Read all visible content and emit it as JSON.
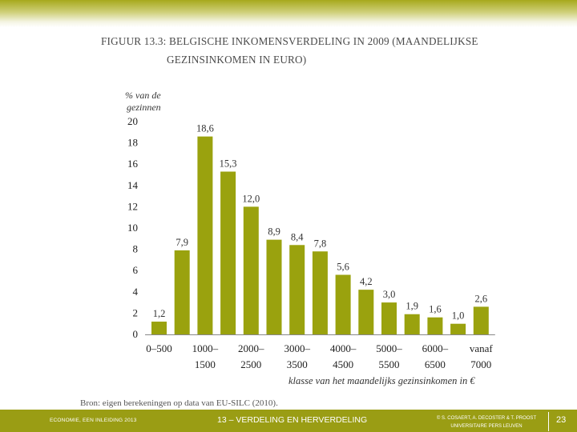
{
  "slide": {
    "title_line1": "FIGUUR 13.3: BELGISCHE INKOMENSVERDELING IN 2009 (MAANDELIJKSE",
    "title_line2": "GEZINSINKOMEN IN EURO)",
    "source": "Bron: eigen berekeningen op data van EU-SILC (2010)."
  },
  "footer": {
    "left": "ECONOMIE, EEN INLEIDING 2013",
    "middle": "13 – VERDELING EN HERVERDELING",
    "right_line1": "© S. COSAERT, A. DECOSTER & T. PROOST",
    "right_line2": "UNIVERSITAIRE PERS LEUVEN",
    "page": "23"
  },
  "colors": {
    "bar": "#9aa20e",
    "footer": "#9a9d14",
    "band": "#a7a91c"
  },
  "chart_data": {
    "type": "bar",
    "title": "Belgische inkomensverdeling in 2009 (maandelijkse gezinsinkomen in euro)",
    "ylabel_line1": "% van de",
    "ylabel_line2": "gezinnen",
    "xlabel": "klasse van het maandelijks gezinsinkomen in €",
    "ylim": [
      0,
      20
    ],
    "yticks": [
      "0",
      "2",
      "4",
      "6",
      "8",
      "10",
      "12",
      "14",
      "16",
      "18",
      "20"
    ],
    "categories": [
      "0–500",
      "",
      "1000–1500",
      "",
      "2000–2500",
      "",
      "3000–3500",
      "",
      "4000–4500",
      "",
      "5000–5500",
      "",
      "6000–6500",
      "",
      "vanaf 7000"
    ],
    "category_labels": [
      {
        "bar": 0,
        "line1": "0–500",
        "line2": ""
      },
      {
        "bar": 2,
        "line1": "1000–",
        "line2": "1500"
      },
      {
        "bar": 4,
        "line1": "2000–",
        "line2": "2500"
      },
      {
        "bar": 6,
        "line1": "3000–",
        "line2": "3500"
      },
      {
        "bar": 8,
        "line1": "4000–",
        "line2": "4500"
      },
      {
        "bar": 10,
        "line1": "5000–",
        "line2": "5500"
      },
      {
        "bar": 12,
        "line1": "6000–",
        "line2": "6500"
      },
      {
        "bar": 14,
        "line1": "vanaf",
        "line2": "7000"
      }
    ],
    "values": [
      1.2,
      7.9,
      18.6,
      15.3,
      12.0,
      8.9,
      8.4,
      7.8,
      5.6,
      4.2,
      3.0,
      1.9,
      1.6,
      1.0,
      2.6
    ],
    "value_labels": [
      "1,2",
      "7,9",
      "18,6",
      "15,3",
      "12,0",
      "8,9",
      "8,4",
      "7,8",
      "5,6",
      "4,2",
      "3,0",
      "1,9",
      "1,6",
      "1,0",
      "2,6"
    ]
  }
}
